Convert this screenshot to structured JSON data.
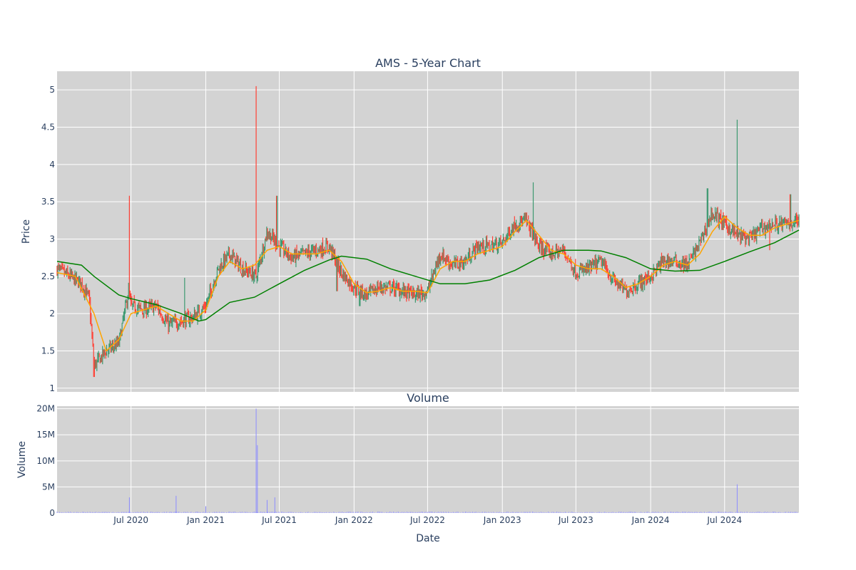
{
  "chart_data": [
    {
      "type": "candlestick",
      "title": "AMS - 5-Year Chart",
      "xlabel": "",
      "ylabel": "Price",
      "ylim": [
        0.95,
        5.25
      ],
      "y_ticks": [
        1,
        1.5,
        2,
        2.5,
        3,
        3.5,
        4,
        4.5,
        5
      ],
      "y_tick_labels": [
        "1",
        "1.5",
        "2",
        "2.5",
        "3",
        "3.5",
        "4",
        "4.5",
        "5"
      ],
      "xlim": [
        "2020-01-01",
        "2024-12-31"
      ],
      "grid": true,
      "colors": {
        "plot_bg": "#d3d3d3",
        "increasing": "#3d9970",
        "decreasing": "#ff4136",
        "ma_short": "#ffa500",
        "ma_long": "#008000"
      },
      "series": [
        {
          "kind": "close",
          "x": [
            "2020-01-01",
            "2020-02-01",
            "2020-03-01",
            "2020-03-20",
            "2020-04-01",
            "2020-05-01",
            "2020-06-01",
            "2020-06-25",
            "2020-07-01",
            "2020-08-01",
            "2020-09-01",
            "2020-10-01",
            "2020-11-01",
            "2020-12-01",
            "2021-01-01",
            "2021-02-01",
            "2021-03-01",
            "2021-04-01",
            "2021-05-05",
            "2021-06-01",
            "2021-07-01",
            "2021-08-01",
            "2021-09-01",
            "2021-10-01",
            "2021-11-01",
            "2021-12-01",
            "2022-01-01",
            "2022-02-01",
            "2022-03-01",
            "2022-04-01",
            "2022-05-01",
            "2022-06-01",
            "2022-07-01",
            "2022-08-01",
            "2022-09-01",
            "2022-10-01",
            "2022-11-01",
            "2022-12-01",
            "2023-01-01",
            "2023-02-01",
            "2023-03-01",
            "2023-04-01",
            "2023-05-01",
            "2023-06-01",
            "2023-07-01",
            "2023-08-01",
            "2023-09-01",
            "2023-10-01",
            "2023-11-01",
            "2023-12-01",
            "2024-01-01",
            "2024-02-01",
            "2024-03-01",
            "2024-04-01",
            "2024-05-01",
            "2024-06-01",
            "2024-07-01",
            "2024-08-01",
            "2024-09-01",
            "2024-10-01",
            "2024-11-01",
            "2024-12-01",
            "2024-12-31"
          ],
          "y": [
            2.6,
            2.5,
            2.4,
            2.2,
            1.3,
            1.5,
            1.6,
            2.3,
            2.1,
            2.05,
            2.1,
            1.85,
            1.9,
            1.95,
            2.1,
            2.6,
            2.8,
            2.6,
            2.5,
            3.1,
            2.9,
            2.75,
            2.8,
            2.85,
            2.9,
            2.55,
            2.35,
            2.25,
            2.35,
            2.35,
            2.3,
            2.25,
            2.3,
            2.8,
            2.65,
            2.7,
            2.9,
            2.9,
            2.95,
            3.2,
            3.25,
            2.9,
            2.8,
            2.85,
            2.55,
            2.6,
            2.7,
            2.45,
            2.3,
            2.4,
            2.5,
            2.7,
            2.7,
            2.65,
            2.95,
            3.35,
            3.2,
            3.05,
            3.0,
            3.15,
            3.2,
            3.2,
            3.25
          ]
        },
        {
          "kind": "ma_short",
          "x": [
            "2020-01-01",
            "2020-02-15",
            "2020-04-01",
            "2020-05-01",
            "2020-06-01",
            "2020-07-01",
            "2020-08-01",
            "2020-09-01",
            "2020-10-01",
            "2020-11-01",
            "2020-12-01",
            "2021-01-01",
            "2021-02-01",
            "2021-03-01",
            "2021-04-01",
            "2021-05-01",
            "2021-06-01",
            "2021-07-01",
            "2021-08-01",
            "2021-09-01",
            "2021-10-01",
            "2021-11-01",
            "2021-12-01",
            "2022-01-01",
            "2022-02-01",
            "2022-03-01",
            "2022-04-01",
            "2022-05-01",
            "2022-06-01",
            "2022-07-01",
            "2022-08-01",
            "2022-09-01",
            "2022-10-01",
            "2022-11-01",
            "2022-12-01",
            "2023-01-01",
            "2023-02-01",
            "2023-03-01",
            "2023-04-01",
            "2023-05-01",
            "2023-06-01",
            "2023-07-01",
            "2023-08-01",
            "2023-09-01",
            "2023-10-01",
            "2023-11-01",
            "2023-12-01",
            "2024-01-01",
            "2024-02-01",
            "2024-03-01",
            "2024-04-01",
            "2024-05-01",
            "2024-06-01",
            "2024-07-01",
            "2024-08-01",
            "2024-09-01",
            "2024-10-01",
            "2024-11-01",
            "2024-12-01",
            "2024-12-31"
          ],
          "y": [
            2.55,
            2.5,
            2.0,
            1.5,
            1.65,
            2.0,
            2.05,
            2.1,
            2.0,
            1.9,
            1.9,
            2.05,
            2.5,
            2.7,
            2.6,
            2.65,
            2.85,
            2.9,
            2.8,
            2.8,
            2.8,
            2.85,
            2.7,
            2.4,
            2.28,
            2.3,
            2.35,
            2.3,
            2.3,
            2.28,
            2.6,
            2.7,
            2.7,
            2.8,
            2.85,
            2.9,
            3.1,
            3.25,
            3.05,
            2.85,
            2.8,
            2.65,
            2.6,
            2.6,
            2.5,
            2.35,
            2.4,
            2.5,
            2.65,
            2.7,
            2.65,
            2.8,
            3.1,
            3.3,
            3.15,
            3.05,
            3.05,
            3.15,
            3.2,
            3.25
          ]
        },
        {
          "kind": "ma_long",
          "x": [
            "2020-01-01",
            "2020-03-01",
            "2020-04-01",
            "2020-06-01",
            "2020-07-01",
            "2020-09-01",
            "2020-11-01",
            "2020-12-15",
            "2021-01-01",
            "2021-03-01",
            "2021-05-01",
            "2021-07-01",
            "2021-09-01",
            "2021-11-01",
            "2021-12-01",
            "2022-02-01",
            "2022-04-01",
            "2022-06-01",
            "2022-08-01",
            "2022-10-01",
            "2022-12-01",
            "2023-02-01",
            "2023-04-01",
            "2023-06-01",
            "2023-08-01",
            "2023-09-01",
            "2023-11-01",
            "2024-01-01",
            "2024-03-01",
            "2024-05-01",
            "2024-07-01",
            "2024-09-01",
            "2024-11-01",
            "2024-12-31"
          ],
          "y": [
            2.7,
            2.65,
            2.5,
            2.25,
            2.2,
            2.12,
            2.0,
            1.9,
            1.92,
            2.15,
            2.22,
            2.4,
            2.58,
            2.72,
            2.77,
            2.73,
            2.6,
            2.5,
            2.4,
            2.4,
            2.45,
            2.58,
            2.75,
            2.85,
            2.85,
            2.84,
            2.75,
            2.6,
            2.57,
            2.58,
            2.7,
            2.83,
            2.95,
            3.12
          ]
        },
        {
          "kind": "spike_high",
          "x": [
            "2020-06-27",
            "2020-11-10",
            "2021-05-05",
            "2021-06-25",
            "2023-03-18",
            "2024-05-20",
            "2024-08-01",
            "2024-12-10"
          ],
          "y": [
            3.58,
            2.48,
            5.05,
            3.58,
            3.76,
            3.68,
            4.6,
            3.6
          ]
        },
        {
          "kind": "spike_low",
          "x": [
            "2020-04-01",
            "2021-11-20",
            "2022-01-15",
            "2024-10-20"
          ],
          "y": [
            1.15,
            2.3,
            2.1,
            2.85
          ]
        }
      ]
    },
    {
      "type": "bar",
      "title": "Volume",
      "xlabel": "Date",
      "ylabel": "Volume",
      "ylim": [
        0,
        20500000
      ],
      "y_ticks": [
        0,
        5000000,
        10000000,
        15000000,
        20000000
      ],
      "y_tick_labels": [
        "0",
        "5M",
        "10M",
        "15M",
        "20M"
      ],
      "x_ticks": [
        "2020-07-01",
        "2021-01-01",
        "2021-07-01",
        "2022-01-01",
        "2022-07-01",
        "2023-01-01",
        "2023-07-01",
        "2024-01-01",
        "2024-07-01"
      ],
      "x_tick_labels": [
        "Jul 2020",
        "Jan 2021",
        "Jul 2021",
        "Jan 2022",
        "Jul 2022",
        "Jan 2023",
        "Jul 2023",
        "Jan 2024",
        "Jul 2024"
      ],
      "grid": true,
      "colors": {
        "bar": "#8c8cff"
      },
      "spikes": {
        "x": [
          "2020-06-27",
          "2020-10-20",
          "2021-01-01",
          "2021-05-05",
          "2021-05-08",
          "2021-06-01",
          "2021-06-20",
          "2024-08-01"
        ],
        "y": [
          3000000,
          3300000,
          1300000,
          20000000,
          13000000,
          2500000,
          3000000,
          5500000
        ]
      }
    }
  ]
}
